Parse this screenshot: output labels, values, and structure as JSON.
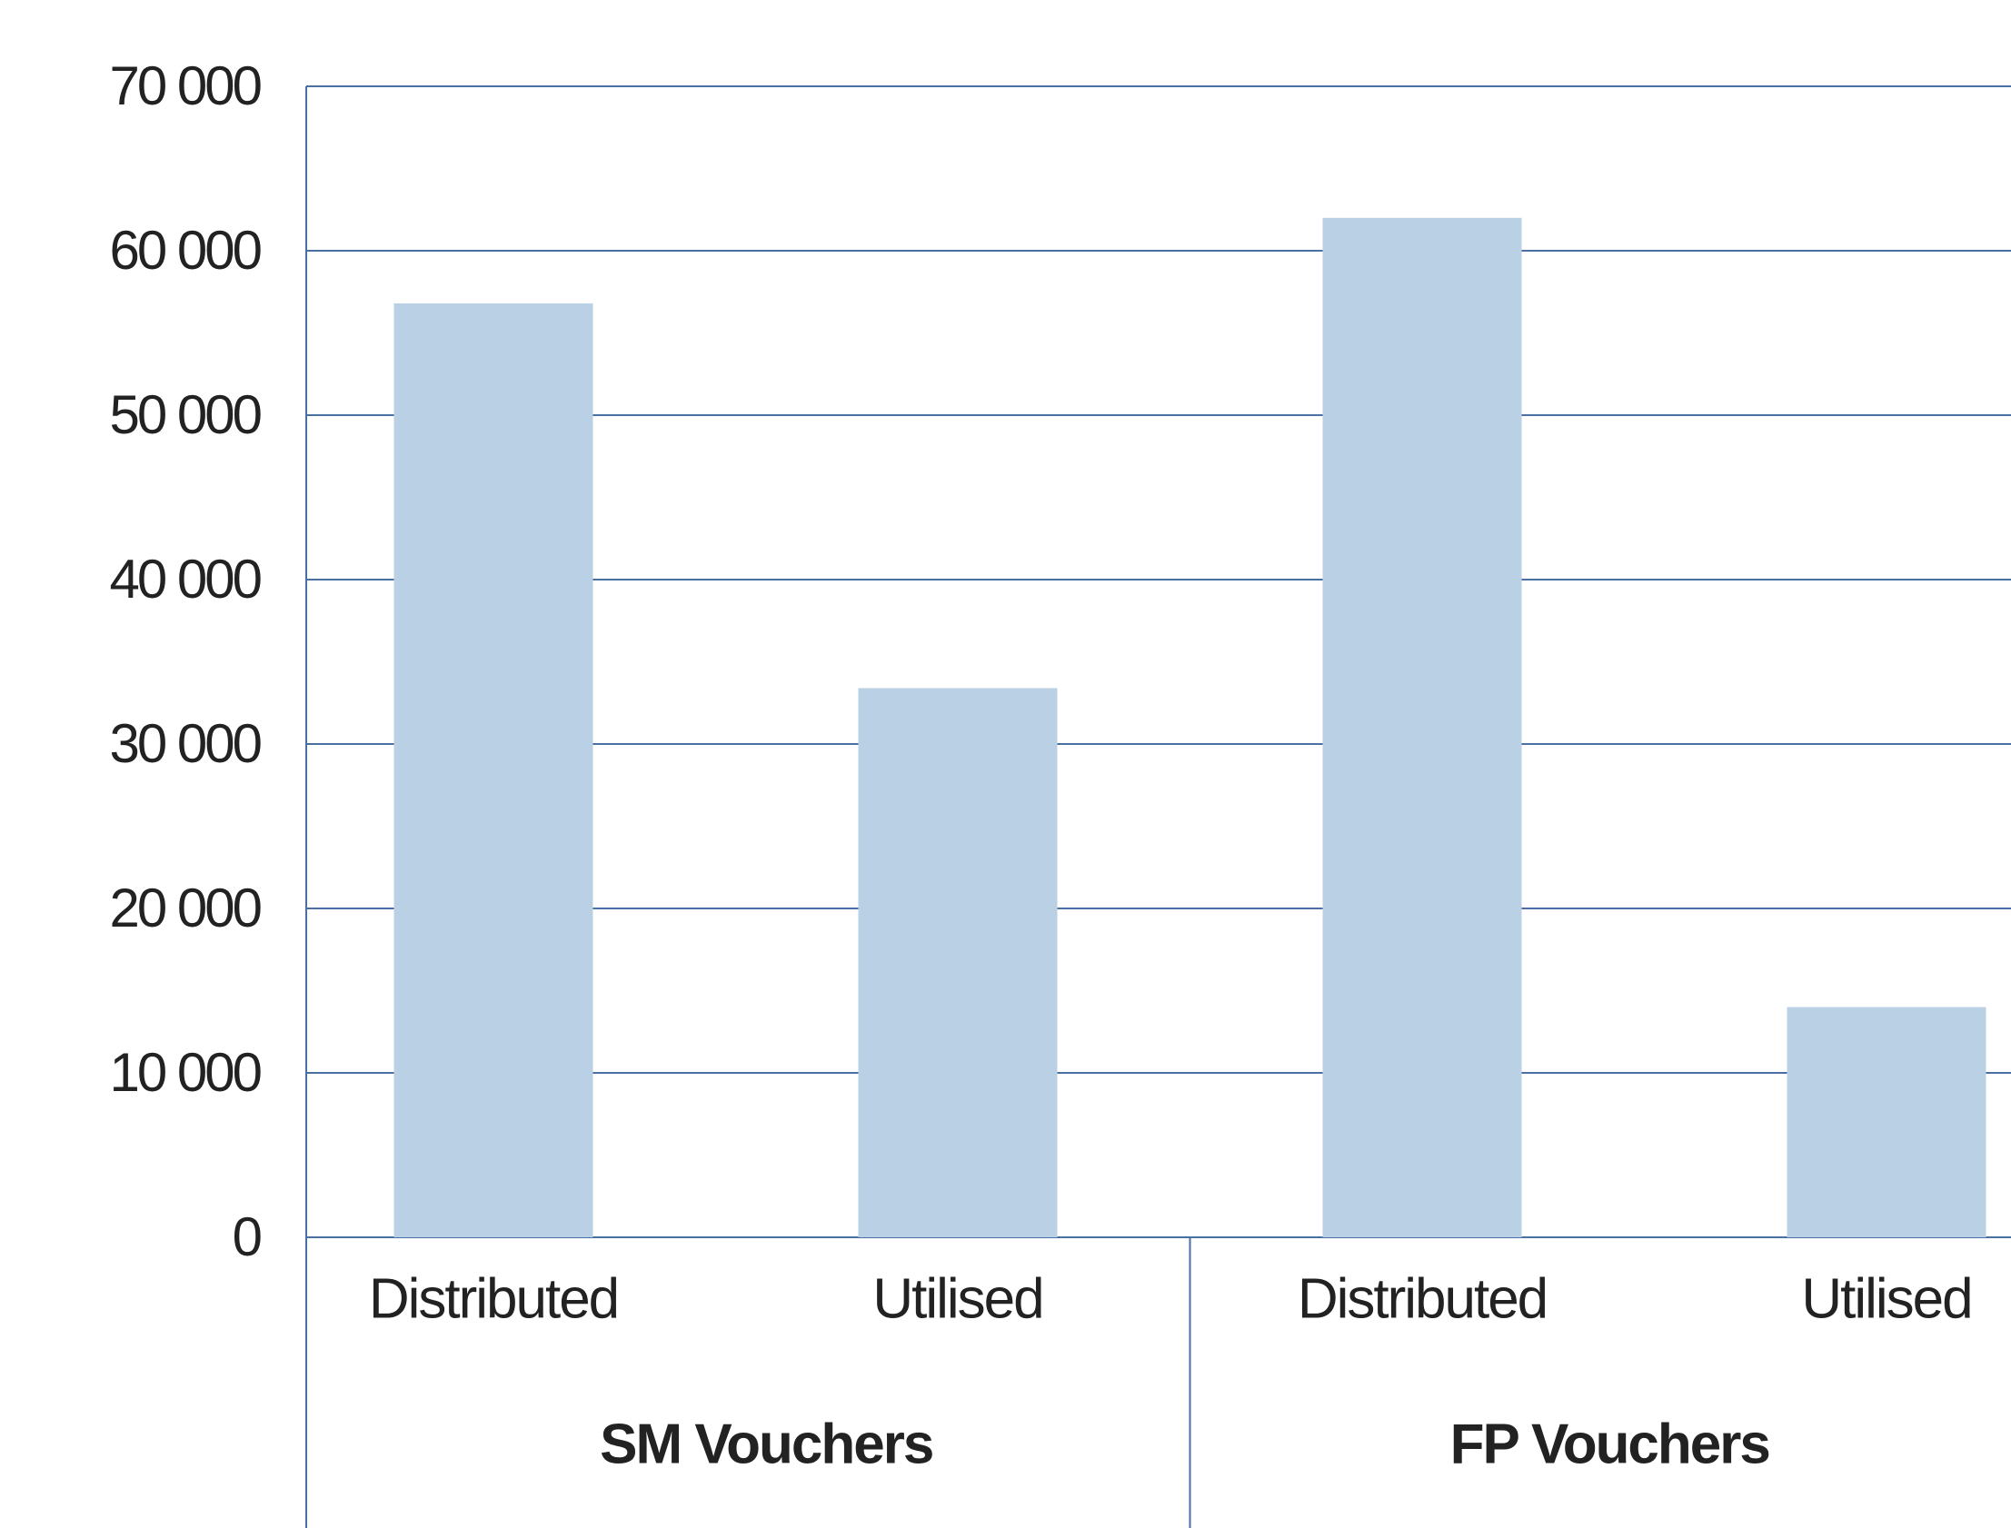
{
  "chart_data": {
    "type": "bar",
    "categories": [
      "Distributed",
      "Utilised",
      "Distributed",
      "Utilised"
    ],
    "groups": [
      "SM Vouchers",
      "FP Vouchers"
    ],
    "values": [
      56800,
      33400,
      62000,
      14000
    ],
    "color": "#bad0e4",
    "ylim": [
      0,
      70000
    ],
    "yticks": [
      0,
      {
        "value": 10000,
        "label": "10 000"
      },
      {
        "value": 20000,
        "label": "20 000"
      },
      {
        "value": 30000,
        "label": "30 000"
      },
      {
        "value": 40000,
        "label": "40 000"
      },
      {
        "value": 50000,
        "label": "50 000"
      },
      {
        "value": 60000,
        "label": "60 000"
      },
      {
        "value": 70000,
        "label": "70 000"
      }
    ],
    "grid": true
  }
}
